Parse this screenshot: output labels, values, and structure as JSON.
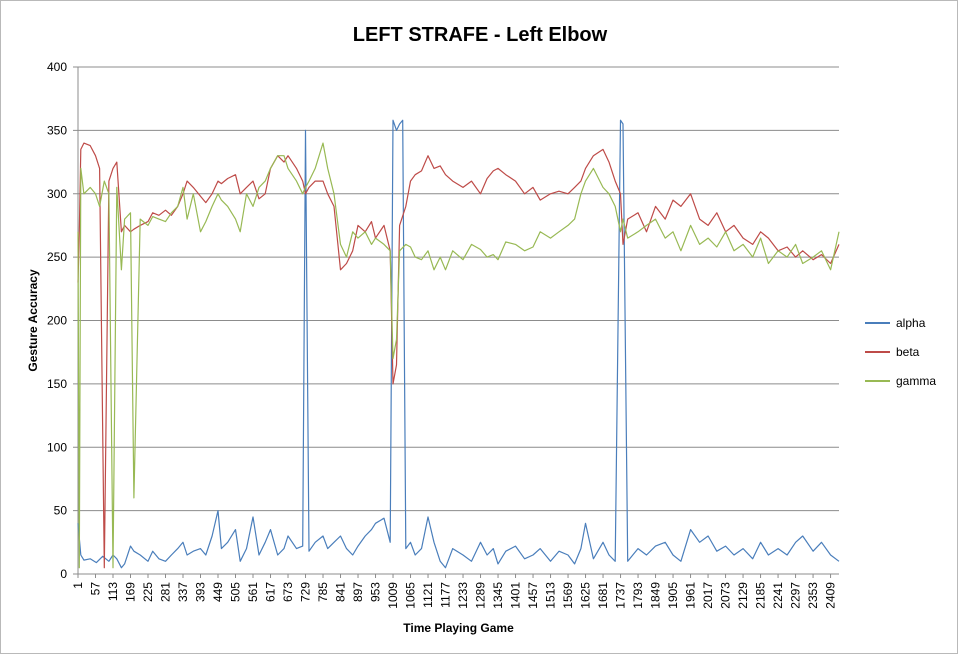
{
  "chart_data": {
    "type": "line",
    "title": "LEFT STRAFE - Left Elbow",
    "xlabel": "Time Playing Game",
    "ylabel": "Gesture Accuracy",
    "ylim": [
      0,
      400
    ],
    "yticks": [
      0,
      50,
      100,
      150,
      200,
      250,
      300,
      350,
      400
    ],
    "xlim": [
      1,
      2436
    ],
    "xticks": [
      1,
      57,
      113,
      169,
      225,
      281,
      337,
      393,
      449,
      505,
      561,
      617,
      673,
      729,
      785,
      841,
      897,
      953,
      1009,
      1065,
      1121,
      1177,
      1233,
      1289,
      1345,
      1401,
      1457,
      1513,
      1569,
      1625,
      1681,
      1737,
      1793,
      1849,
      1905,
      1961,
      2017,
      2073,
      2129,
      2185,
      2241,
      2297,
      2353,
      2409
    ],
    "grid": true,
    "legend_position": "right",
    "series": [
      {
        "name": "alpha",
        "color": "#4a7ebb",
        "x": [
          1,
          10,
          20,
          40,
          60,
          80,
          100,
          113,
          125,
          140,
          150,
          169,
          180,
          200,
          225,
          240,
          260,
          281,
          300,
          320,
          337,
          350,
          370,
          393,
          410,
          430,
          449,
          460,
          480,
          505,
          520,
          540,
          561,
          580,
          600,
          617,
          640,
          660,
          673,
          700,
          720,
          729,
          740,
          760,
          785,
          800,
          820,
          841,
          860,
          880,
          897,
          920,
          940,
          953,
          980,
          1000,
          1009,
          1020,
          1030,
          1040,
          1050,
          1065,
          1080,
          1100,
          1121,
          1140,
          1160,
          1177,
          1200,
          1233,
          1260,
          1289,
          1310,
          1330,
          1345,
          1370,
          1401,
          1430,
          1457,
          1480,
          1513,
          1540,
          1569,
          1590,
          1610,
          1625,
          1650,
          1681,
          1700,
          1720,
          1737,
          1745,
          1760,
          1793,
          1820,
          1849,
          1880,
          1905,
          1930,
          1961,
          1990,
          2017,
          2045,
          2073,
          2100,
          2129,
          2160,
          2185,
          2210,
          2241,
          2270,
          2297,
          2320,
          2353,
          2380,
          2409,
          2436
        ],
        "values": [
          40,
          15,
          11,
          12,
          9,
          14,
          10,
          15,
          12,
          5,
          8,
          22,
          18,
          15,
          10,
          18,
          12,
          10,
          15,
          20,
          25,
          15,
          18,
          20,
          15,
          30,
          50,
          20,
          25,
          35,
          10,
          20,
          45,
          15,
          25,
          35,
          15,
          20,
          30,
          20,
          22,
          350,
          18,
          25,
          30,
          20,
          25,
          30,
          20,
          15,
          22,
          30,
          35,
          40,
          44,
          25,
          358,
          350,
          355,
          358,
          20,
          25,
          15,
          20,
          45,
          25,
          10,
          5,
          20,
          15,
          10,
          25,
          15,
          20,
          8,
          18,
          22,
          12,
          15,
          20,
          10,
          18,
          15,
          8,
          20,
          40,
          12,
          25,
          15,
          10,
          358,
          355,
          10,
          20,
          15,
          22,
          25,
          15,
          10,
          35,
          25,
          30,
          18,
          22,
          15,
          20,
          12,
          25,
          15,
          20,
          15,
          25,
          30,
          18,
          25,
          15,
          10
        ]
      },
      {
        "name": "beta",
        "color": "#be4b48",
        "x": [
          1,
          5,
          10,
          20,
          40,
          57,
          70,
          85,
          100,
          113,
          125,
          140,
          150,
          169,
          180,
          200,
          225,
          240,
          260,
          281,
          300,
          320,
          337,
          350,
          370,
          393,
          410,
          430,
          449,
          460,
          480,
          505,
          520,
          540,
          561,
          580,
          600,
          617,
          640,
          660,
          673,
          700,
          720,
          729,
          740,
          760,
          785,
          800,
          820,
          841,
          860,
          880,
          897,
          920,
          940,
          953,
          980,
          1000,
          1009,
          1020,
          1030,
          1050,
          1065,
          1080,
          1100,
          1121,
          1140,
          1160,
          1177,
          1200,
          1233,
          1260,
          1289,
          1310,
          1330,
          1345,
          1370,
          1401,
          1430,
          1457,
          1480,
          1513,
          1540,
          1569,
          1590,
          1610,
          1625,
          1650,
          1681,
          1700,
          1720,
          1737,
          1745,
          1760,
          1793,
          1820,
          1849,
          1880,
          1905,
          1930,
          1961,
          1990,
          2017,
          2045,
          2073,
          2100,
          2129,
          2160,
          2185,
          2210,
          2241,
          2270,
          2297,
          2320,
          2353,
          2380,
          2409,
          2436
        ],
        "values": [
          230,
          270,
          335,
          340,
          338,
          330,
          320,
          5,
          310,
          320,
          325,
          270,
          275,
          270,
          272,
          275,
          278,
          285,
          283,
          287,
          283,
          290,
          300,
          310,
          305,
          298,
          293,
          300,
          310,
          308,
          312,
          315,
          300,
          305,
          310,
          296,
          300,
          320,
          330,
          325,
          330,
          320,
          310,
          300,
          305,
          310,
          310,
          300,
          290,
          240,
          245,
          255,
          275,
          270,
          278,
          265,
          275,
          255,
          150,
          165,
          275,
          290,
          310,
          315,
          318,
          330,
          320,
          322,
          315,
          310,
          305,
          310,
          300,
          312,
          318,
          320,
          315,
          310,
          300,
          305,
          295,
          300,
          302,
          300,
          305,
          310,
          320,
          330,
          335,
          325,
          310,
          300,
          260,
          280,
          285,
          270,
          290,
          280,
          295,
          290,
          300,
          280,
          275,
          285,
          270,
          275,
          265,
          260,
          270,
          265,
          255,
          258,
          250,
          255,
          248,
          252,
          245,
          260
        ]
      },
      {
        "name": "gamma",
        "color": "#98b954",
        "x": [
          1,
          5,
          10,
          20,
          40,
          57,
          70,
          85,
          100,
          113,
          125,
          140,
          150,
          169,
          180,
          200,
          225,
          240,
          260,
          281,
          300,
          320,
          337,
          350,
          370,
          393,
          410,
          430,
          449,
          460,
          480,
          505,
          520,
          540,
          561,
          580,
          600,
          617,
          640,
          660,
          673,
          700,
          720,
          729,
          740,
          760,
          785,
          800,
          820,
          841,
          860,
          880,
          897,
          920,
          940,
          953,
          980,
          1000,
          1009,
          1020,
          1030,
          1050,
          1065,
          1080,
          1100,
          1121,
          1140,
          1160,
          1177,
          1200,
          1233,
          1260,
          1289,
          1310,
          1330,
          1345,
          1370,
          1401,
          1430,
          1457,
          1480,
          1513,
          1540,
          1569,
          1590,
          1610,
          1625,
          1650,
          1681,
          1700,
          1720,
          1737,
          1745,
          1760,
          1793,
          1820,
          1849,
          1880,
          1905,
          1930,
          1961,
          1990,
          2017,
          2045,
          2073,
          2100,
          2129,
          2160,
          2185,
          2210,
          2241,
          2270,
          2297,
          2320,
          2353,
          2380,
          2409,
          2436
        ],
        "values": [
          270,
          5,
          320,
          300,
          305,
          300,
          290,
          310,
          300,
          5,
          305,
          240,
          280,
          285,
          60,
          280,
          275,
          282,
          280,
          278,
          285,
          290,
          305,
          280,
          300,
          270,
          278,
          290,
          300,
          295,
          290,
          280,
          270,
          300,
          290,
          305,
          310,
          320,
          330,
          330,
          320,
          310,
          300,
          305,
          310,
          320,
          340,
          320,
          300,
          260,
          250,
          270,
          265,
          270,
          260,
          265,
          260,
          255,
          170,
          185,
          255,
          260,
          258,
          250,
          248,
          255,
          240,
          250,
          240,
          255,
          248,
          260,
          256,
          250,
          252,
          248,
          262,
          260,
          255,
          258,
          270,
          265,
          270,
          275,
          280,
          300,
          310,
          320,
          305,
          300,
          290,
          270,
          280,
          265,
          270,
          275,
          280,
          265,
          270,
          255,
          275,
          260,
          265,
          258,
          270,
          255,
          260,
          250,
          265,
          245,
          255,
          250,
          260,
          245,
          250,
          255,
          240,
          270
        ]
      }
    ]
  }
}
